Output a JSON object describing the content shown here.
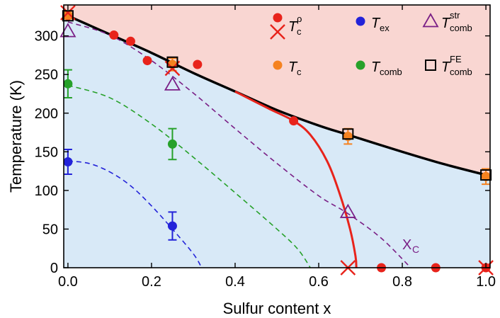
{
  "chart_data": {
    "type": "scatter",
    "xlabel": "Sulfur content x",
    "ylabel": "Temperature (K)",
    "xlim": [
      -0.01,
      1.01
    ],
    "ylim": [
      0,
      340
    ],
    "xticks": [
      "0.0",
      "0.2",
      "0.4",
      "0.6",
      "0.8",
      "1.0"
    ],
    "yticks": [
      "0",
      "50",
      "100",
      "150",
      "200",
      "250",
      "300"
    ],
    "regions": {
      "upper_color": "#f9d6d2",
      "lower_color": "#d8e9f7"
    },
    "series": [
      {
        "name": "T_c^ρ",
        "marker": "circle",
        "color": "#e8231b",
        "points": [
          [
            0.0,
            326
          ],
          [
            0.11,
            301
          ],
          [
            0.15,
            293
          ],
          [
            0.19,
            268
          ],
          [
            0.31,
            263
          ],
          [
            0.54,
            190
          ],
          [
            0.75,
            0
          ],
          [
            0.88,
            0
          ],
          [
            1.0,
            0
          ]
        ]
      },
      {
        "name": "T_c^ρ",
        "marker": "cross",
        "color": "#e8231b",
        "points": [
          [
            0.0,
            330
          ],
          [
            0.25,
            258
          ],
          [
            0.67,
            0
          ],
          [
            1.0,
            0
          ]
        ]
      },
      {
        "name": "T_c",
        "marker": "circle",
        "color": "#f58220",
        "points": [
          [
            0.0,
            327
          ],
          [
            0.25,
            263
          ],
          [
            0.67,
            170
          ],
          [
            1.0,
            118
          ]
        ],
        "errors": [
          5,
          8,
          10,
          10
        ]
      },
      {
        "name": "T_ex",
        "marker": "circle",
        "color": "#2323d9",
        "points": [
          [
            0.0,
            137
          ],
          [
            0.25,
            54
          ]
        ],
        "errors": [
          16,
          18
        ]
      },
      {
        "name": "T_comb",
        "marker": "circle",
        "color": "#27a12a",
        "points": [
          [
            0.0,
            238
          ],
          [
            0.25,
            160
          ]
        ],
        "errors": [
          18,
          20
        ]
      },
      {
        "name": "T_comb^str",
        "marker": "triangle",
        "color": "#7a1f86",
        "points": [
          [
            0.0,
            306
          ],
          [
            0.25,
            237
          ],
          [
            0.67,
            72
          ]
        ]
      },
      {
        "name": "T_comb^FE",
        "marker": "square",
        "color": "#000000",
        "points": [
          [
            0.0,
            326
          ],
          [
            0.25,
            266
          ],
          [
            0.67,
            173
          ],
          [
            1.0,
            120
          ]
        ]
      }
    ],
    "curves": [
      {
        "name": "black-boundary",
        "color": "#000000",
        "style": "solid",
        "points": [
          [
            0.0,
            326
          ],
          [
            0.1,
            302
          ],
          [
            0.2,
            278
          ],
          [
            0.3,
            252
          ],
          [
            0.4,
            228
          ],
          [
            0.5,
            204
          ],
          [
            0.6,
            184
          ],
          [
            0.67,
            172
          ],
          [
            0.8,
            150
          ],
          [
            0.9,
            134
          ],
          [
            1.0,
            120
          ]
        ]
      },
      {
        "name": "red-boundary",
        "color": "#e8231b",
        "style": "solid",
        "points": [
          [
            0.4,
            228
          ],
          [
            0.48,
            206
          ],
          [
            0.54,
            190
          ],
          [
            0.58,
            172
          ],
          [
            0.62,
            138
          ],
          [
            0.65,
            96
          ],
          [
            0.675,
            50
          ],
          [
            0.688,
            15
          ],
          [
            0.69,
            0
          ]
        ]
      },
      {
        "name": "purple-dashed",
        "color": "#7a1f86",
        "style": "dashed",
        "points": [
          [
            0.0,
            318
          ],
          [
            0.1,
            301
          ],
          [
            0.2,
            268
          ],
          [
            0.3,
            226
          ],
          [
            0.4,
            180
          ],
          [
            0.5,
            135
          ],
          [
            0.6,
            93
          ],
          [
            0.67,
            70
          ],
          [
            0.75,
            38
          ],
          [
            0.82,
            0
          ]
        ]
      },
      {
        "name": "green-dashed",
        "color": "#27a12a",
        "style": "dashed",
        "points": [
          [
            0.0,
            236
          ],
          [
            0.1,
            220
          ],
          [
            0.2,
            186
          ],
          [
            0.3,
            143
          ],
          [
            0.4,
            97
          ],
          [
            0.5,
            50
          ],
          [
            0.55,
            24
          ],
          [
            0.58,
            0
          ]
        ]
      },
      {
        "name": "blue-dashed",
        "color": "#2323d9",
        "style": "dashed",
        "points": [
          [
            0.0,
            138
          ],
          [
            0.05,
            135
          ],
          [
            0.1,
            124
          ],
          [
            0.15,
            106
          ],
          [
            0.2,
            80
          ],
          [
            0.25,
            50
          ],
          [
            0.3,
            18
          ],
          [
            0.32,
            0
          ]
        ]
      }
    ],
    "annotations": [
      {
        "text": "X",
        "sub": "C",
        "x": 0.81,
        "y": 13,
        "color": "#7a1f86"
      }
    ],
    "legend": {
      "placement": "top-right",
      "entries": [
        {
          "marker": "circle+cross",
          "color": "#e8231b",
          "label": "T",
          "sub": "c",
          "sup": "ρ"
        },
        {
          "marker": "circle",
          "color": "#2323d9",
          "label": "T",
          "sub": "ex",
          "sup": ""
        },
        {
          "marker": "triangle",
          "color": "#7a1f86",
          "label": "T",
          "sub": "comb",
          "sup": "str"
        },
        {
          "marker": "circle",
          "color": "#f58220",
          "label": "T",
          "sub": "c",
          "sup": ""
        },
        {
          "marker": "circle",
          "color": "#27a12a",
          "label": "T",
          "sub": "comb",
          "sup": ""
        },
        {
          "marker": "square",
          "color": "#000000",
          "label": "T",
          "sub": "comb",
          "sup": "FE"
        }
      ]
    }
  }
}
